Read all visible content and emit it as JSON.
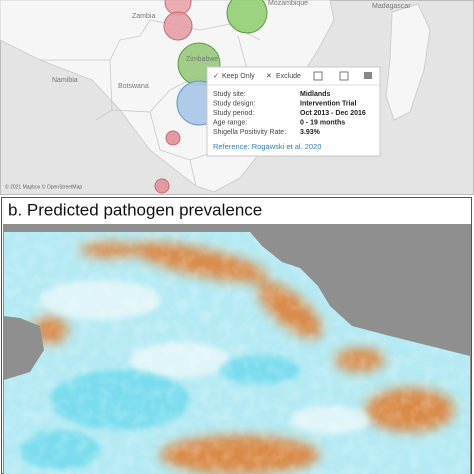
{
  "panel_a": {
    "map_labels": [
      "Zambia",
      "Mozambique",
      "Namibia",
      "Botswana",
      "Zimbabwe",
      "Madagascar"
    ],
    "tooltip": {
      "actions": [
        "Keep Only",
        "Exclude"
      ],
      "rows": [
        {
          "label": "Study site:",
          "value": "Midlands"
        },
        {
          "label": "Study design:",
          "value": "Intervention Trial"
        },
        {
          "label": "Study period:",
          "value": "Oct 2013 - Dec 2016"
        },
        {
          "label": "Age range:",
          "value": "0 - 19 months"
        },
        {
          "label": "Shigella Positivity Rate:",
          "value": "3.93%"
        }
      ],
      "reference": "Reference: Rogawski et al. 2020"
    },
    "attribution": "© 2021 Mapbox © OpenStreetMap"
  },
  "panel_b": {
    "title": "b. Predicted pathogen prevalence"
  }
}
